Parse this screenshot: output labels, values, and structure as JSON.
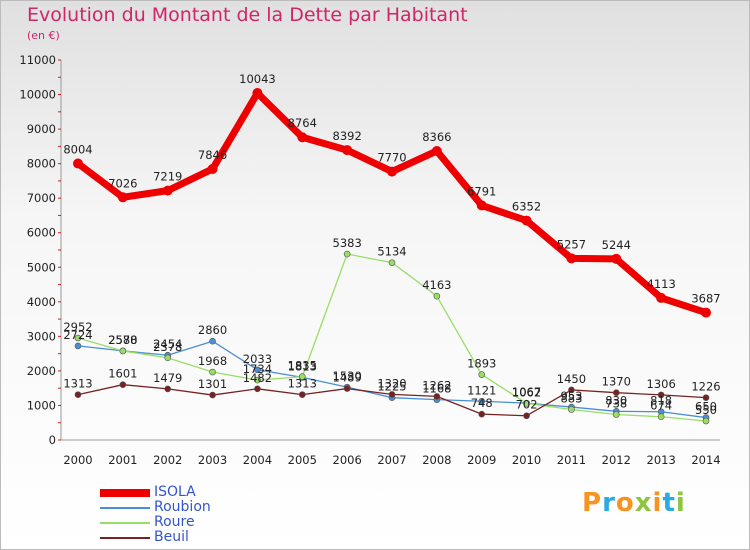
{
  "header": {
    "title": "Evolution du Montant de la Dette par Habitant",
    "subtitle": "(en €)"
  },
  "logo": {
    "letters": [
      "P",
      "r",
      "o",
      "x",
      "i",
      "t",
      "i"
    ],
    "colors": [
      "#f7931e",
      "#29abe2",
      "#f7931e",
      "#8cc63f",
      "#f7931e",
      "#29abe2",
      "#8cc63f"
    ]
  },
  "chart_data": {
    "type": "line",
    "title": "Evolution du Montant de la Dette par Habitant",
    "ylabel": "(en €)",
    "xlabel": "",
    "x": [
      2000,
      2001,
      2002,
      2003,
      2004,
      2005,
      2006,
      2007,
      2008,
      2009,
      2010,
      2011,
      2012,
      2013,
      2014
    ],
    "ylim": [
      0,
      11000
    ],
    "yticks": [
      0,
      1000,
      2000,
      3000,
      4000,
      5000,
      6000,
      7000,
      8000,
      9000,
      10000,
      11000
    ],
    "grid": false,
    "legend_position": "bottom-left",
    "series": [
      {
        "name": "ISOLA",
        "color": "#ee0000",
        "values": [
          8004,
          7026,
          7219,
          7846,
          10043,
          8764,
          8392,
          7770,
          8366,
          6791,
          6352,
          5257,
          5244,
          4113,
          3687
        ]
      },
      {
        "name": "Roubion",
        "color": "#4a8fd4",
        "values": [
          2724,
          2580,
          2454,
          2860,
          2033,
          1813,
          1530,
          1225,
          1168,
          1121,
          1067,
          953,
          830,
          818,
          650
        ]
      },
      {
        "name": "Roure",
        "color": "#99dd66",
        "values": [
          2952,
          2578,
          2378,
          1968,
          1734,
          1835,
          5383,
          5134,
          4163,
          1893,
          1062,
          883,
          738,
          674,
          550
        ]
      },
      {
        "name": "Beuil",
        "color": "#772222",
        "values": [
          1313,
          1601,
          1479,
          1301,
          1482,
          1313,
          1489,
          1320,
          1262,
          748,
          702,
          1450,
          1370,
          1306,
          1226
        ]
      }
    ]
  }
}
